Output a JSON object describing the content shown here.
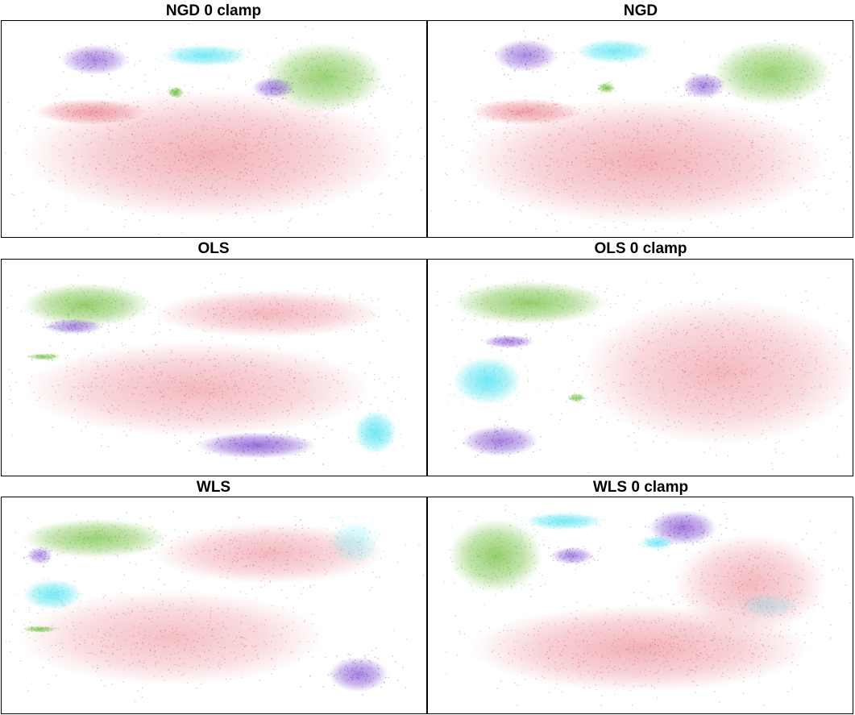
{
  "figure": {
    "panels": [
      {
        "title": "NGD 0 clamp"
      },
      {
        "title": "NGD"
      },
      {
        "title": "OLS"
      },
      {
        "title": "OLS 0 clamp"
      },
      {
        "title": "WLS"
      },
      {
        "title": "WLS 0 clamp"
      }
    ]
  },
  "chart_data": [
    {
      "type": "scatter",
      "title": "NGD 0 clamp",
      "grid": false,
      "axes": "hidden",
      "clusters": [
        {
          "color": "#e05060",
          "shape": "blob",
          "cx": 0.49,
          "cy": 0.62,
          "rx": 0.44,
          "ry": 0.3,
          "density": 0.55
        },
        {
          "color": "#e05060",
          "shape": "blob",
          "cx": 0.21,
          "cy": 0.42,
          "rx": 0.13,
          "ry": 0.06,
          "density": 0.65
        },
        {
          "color": "#62b82a",
          "shape": "blob",
          "cx": 0.76,
          "cy": 0.26,
          "rx": 0.14,
          "ry": 0.16,
          "density": 0.8
        },
        {
          "color": "#3ee0ee",
          "shape": "blob",
          "cx": 0.48,
          "cy": 0.16,
          "rx": 0.1,
          "ry": 0.05,
          "density": 0.85
        },
        {
          "color": "#6a2fc8",
          "shape": "blob",
          "cx": 0.22,
          "cy": 0.18,
          "rx": 0.08,
          "ry": 0.07,
          "density": 0.7
        },
        {
          "color": "#6a2fc8",
          "shape": "blob",
          "cx": 0.64,
          "cy": 0.31,
          "rx": 0.05,
          "ry": 0.05,
          "density": 0.7
        },
        {
          "color": "#62b82a",
          "shape": "blob",
          "cx": 0.41,
          "cy": 0.33,
          "rx": 0.02,
          "ry": 0.025,
          "density": 0.9
        }
      ]
    },
    {
      "type": "scatter",
      "title": "NGD",
      "grid": false,
      "axes": "hidden",
      "clusters": [
        {
          "color": "#e05060",
          "shape": "blob",
          "cx": 0.51,
          "cy": 0.65,
          "rx": 0.43,
          "ry": 0.29,
          "density": 0.55
        },
        {
          "color": "#e05060",
          "shape": "blob",
          "cx": 0.23,
          "cy": 0.42,
          "rx": 0.13,
          "ry": 0.06,
          "density": 0.65
        },
        {
          "color": "#62b82a",
          "shape": "blob",
          "cx": 0.81,
          "cy": 0.24,
          "rx": 0.14,
          "ry": 0.15,
          "density": 0.8
        },
        {
          "color": "#3ee0ee",
          "shape": "blob",
          "cx": 0.44,
          "cy": 0.14,
          "rx": 0.09,
          "ry": 0.055,
          "density": 0.85
        },
        {
          "color": "#6a2fc8",
          "shape": "blob",
          "cx": 0.23,
          "cy": 0.16,
          "rx": 0.075,
          "ry": 0.075,
          "density": 0.7
        },
        {
          "color": "#6a2fc8",
          "shape": "blob",
          "cx": 0.65,
          "cy": 0.3,
          "rx": 0.05,
          "ry": 0.06,
          "density": 0.7
        },
        {
          "color": "#62b82a",
          "shape": "blob",
          "cx": 0.42,
          "cy": 0.31,
          "rx": 0.02,
          "ry": 0.025,
          "density": 0.9
        }
      ]
    },
    {
      "type": "scatter",
      "title": "OLS",
      "grid": false,
      "axes": "hidden",
      "clusters": [
        {
          "color": "#e05060",
          "shape": "blob",
          "cx": 0.63,
          "cy": 0.25,
          "rx": 0.27,
          "ry": 0.11,
          "density": 0.5
        },
        {
          "color": "#e05060",
          "shape": "blob",
          "cx": 0.46,
          "cy": 0.6,
          "rx": 0.41,
          "ry": 0.22,
          "density": 0.5
        },
        {
          "color": "#62b82a",
          "shape": "blob",
          "cx": 0.2,
          "cy": 0.21,
          "rx": 0.15,
          "ry": 0.1,
          "density": 0.85
        },
        {
          "color": "#6a2fc8",
          "shape": "blob",
          "cx": 0.17,
          "cy": 0.31,
          "rx": 0.07,
          "ry": 0.035,
          "density": 0.7
        },
        {
          "color": "#6a2fc8",
          "shape": "blob",
          "cx": 0.6,
          "cy": 0.86,
          "rx": 0.14,
          "ry": 0.06,
          "density": 0.85
        },
        {
          "color": "#3ee0ee",
          "shape": "blob",
          "cx": 0.88,
          "cy": 0.8,
          "rx": 0.05,
          "ry": 0.1,
          "density": 0.9
        },
        {
          "color": "#62b82a",
          "shape": "blob",
          "cx": 0.1,
          "cy": 0.45,
          "rx": 0.04,
          "ry": 0.015,
          "density": 0.85
        }
      ]
    },
    {
      "type": "scatter",
      "title": "OLS 0 clamp",
      "grid": false,
      "axes": "hidden",
      "clusters": [
        {
          "color": "#e05060",
          "shape": "blob",
          "cx": 0.69,
          "cy": 0.52,
          "rx": 0.33,
          "ry": 0.34,
          "density": 0.5
        },
        {
          "color": "#62b82a",
          "shape": "blob",
          "cx": 0.24,
          "cy": 0.2,
          "rx": 0.18,
          "ry": 0.1,
          "density": 0.85
        },
        {
          "color": "#3ee0ee",
          "shape": "blob",
          "cx": 0.14,
          "cy": 0.56,
          "rx": 0.08,
          "ry": 0.11,
          "density": 0.9
        },
        {
          "color": "#6a2fc8",
          "shape": "blob",
          "cx": 0.17,
          "cy": 0.84,
          "rx": 0.09,
          "ry": 0.07,
          "density": 0.75
        },
        {
          "color": "#6a2fc8",
          "shape": "blob",
          "cx": 0.19,
          "cy": 0.38,
          "rx": 0.06,
          "ry": 0.03,
          "density": 0.7
        },
        {
          "color": "#62b82a",
          "shape": "blob",
          "cx": 0.35,
          "cy": 0.64,
          "rx": 0.02,
          "ry": 0.02,
          "density": 0.8
        }
      ]
    },
    {
      "type": "scatter",
      "title": "WLS",
      "grid": false,
      "axes": "hidden",
      "clusters": [
        {
          "color": "#e05060",
          "shape": "blob",
          "cx": 0.63,
          "cy": 0.26,
          "rx": 0.27,
          "ry": 0.14,
          "density": 0.5
        },
        {
          "color": "#e05060",
          "shape": "blob",
          "cx": 0.4,
          "cy": 0.65,
          "rx": 0.36,
          "ry": 0.22,
          "density": 0.45
        },
        {
          "color": "#62b82a",
          "shape": "blob",
          "cx": 0.22,
          "cy": 0.19,
          "rx": 0.17,
          "ry": 0.09,
          "density": 0.8
        },
        {
          "color": "#3ee0ee",
          "shape": "blob",
          "cx": 0.12,
          "cy": 0.45,
          "rx": 0.07,
          "ry": 0.07,
          "density": 0.85
        },
        {
          "color": "#6a2fc8",
          "shape": "blob",
          "cx": 0.09,
          "cy": 0.27,
          "rx": 0.03,
          "ry": 0.04,
          "density": 0.6
        },
        {
          "color": "#6a2fc8",
          "shape": "blob",
          "cx": 0.84,
          "cy": 0.82,
          "rx": 0.07,
          "ry": 0.08,
          "density": 0.75
        },
        {
          "color": "#3ee0ee",
          "shape": "blob",
          "cx": 0.83,
          "cy": 0.21,
          "rx": 0.06,
          "ry": 0.1,
          "density": 0.35
        },
        {
          "color": "#62b82a",
          "shape": "blob",
          "cx": 0.09,
          "cy": 0.61,
          "rx": 0.04,
          "ry": 0.015,
          "density": 0.85
        }
      ]
    },
    {
      "type": "scatter",
      "title": "WLS 0 clamp",
      "grid": false,
      "axes": "hidden",
      "clusters": [
        {
          "color": "#e05060",
          "shape": "blob",
          "cx": 0.5,
          "cy": 0.7,
          "rx": 0.4,
          "ry": 0.2,
          "density": 0.55
        },
        {
          "color": "#e05060",
          "shape": "blob",
          "cx": 0.76,
          "cy": 0.4,
          "rx": 0.18,
          "ry": 0.23,
          "density": 0.5
        },
        {
          "color": "#62b82a",
          "shape": "blob",
          "cx": 0.16,
          "cy": 0.27,
          "rx": 0.11,
          "ry": 0.17,
          "density": 0.85
        },
        {
          "color": "#3ee0ee",
          "shape": "blob",
          "cx": 0.32,
          "cy": 0.11,
          "rx": 0.09,
          "ry": 0.04,
          "density": 0.85
        },
        {
          "color": "#6a2fc8",
          "shape": "blob",
          "cx": 0.6,
          "cy": 0.14,
          "rx": 0.08,
          "ry": 0.08,
          "density": 0.8
        },
        {
          "color": "#3ee0ee",
          "shape": "blob",
          "cx": 0.54,
          "cy": 0.21,
          "rx": 0.04,
          "ry": 0.03,
          "density": 0.8
        },
        {
          "color": "#6a2fc8",
          "shape": "blob",
          "cx": 0.34,
          "cy": 0.27,
          "rx": 0.05,
          "ry": 0.04,
          "density": 0.7
        },
        {
          "color": "#3ee0ee",
          "shape": "blob",
          "cx": 0.8,
          "cy": 0.5,
          "rx": 0.07,
          "ry": 0.06,
          "density": 0.3
        }
      ]
    }
  ]
}
